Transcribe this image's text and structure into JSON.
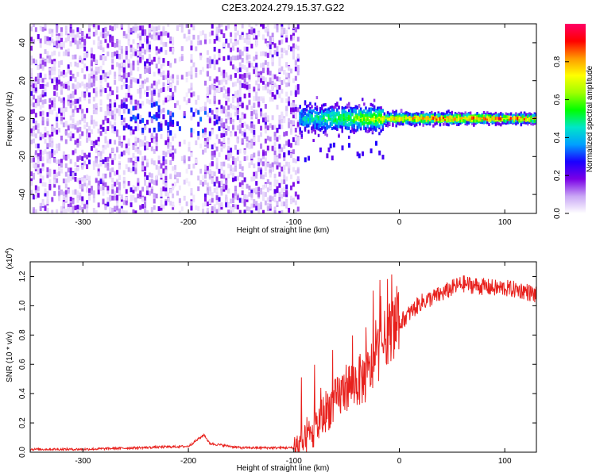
{
  "title": "C2E3.2024.279.15.37.G22",
  "chart_data": [
    {
      "type": "heatmap",
      "xlabel": "Height of straight line (km)",
      "ylabel": "Frequency (Hz)",
      "xlim": [
        -350,
        130
      ],
      "ylim": [
        -50,
        50
      ],
      "xticks": [
        -300,
        -200,
        -100,
        0,
        100
      ],
      "yticks": [
        -40,
        -20,
        0,
        20,
        40
      ],
      "colorbar": {
        "label": "Normalized spectral amplitude",
        "range": [
          0,
          1
        ],
        "ticks": [
          0.0,
          0.2,
          0.4,
          0.6,
          0.8
        ],
        "colormap": [
          "#ffffff",
          "#c9a6f5",
          "#7a00e6",
          "#1a00ff",
          "#00a0ff",
          "#00e6c8",
          "#00ff00",
          "#a0ff00",
          "#ffff00",
          "#ff9900",
          "#ff0000",
          "#ff0066"
        ]
      },
      "regions": [
        {
          "x": [
            -350,
            -95
          ],
          "freq_spread": [
            -50,
            50
          ],
          "amplitude": [
            0.0,
            0.2
          ],
          "description": "noise"
        },
        {
          "x": [
            -95,
            130
          ],
          "freq_center": 0,
          "freq_spread": [
            -8,
            8
          ],
          "amplitude": [
            0.2,
            0.9
          ]
        }
      ]
    },
    {
      "type": "line",
      "xlabel": "Height of straight line (km)",
      "ylabel": "SNR (10 * v/v)",
      "yscale_label": "(x10^4)",
      "xlim": [
        -350,
        130
      ],
      "ylim": [
        0,
        1.3
      ],
      "xticks": [
        -300,
        -200,
        -100,
        0,
        100
      ],
      "yticks": [
        0.0,
        0.2,
        0.4,
        0.6,
        0.8,
        1.0,
        1.2
      ],
      "color": "#e8211d",
      "series": [
        {
          "x": [
            -350,
            -300,
            -250,
            -200,
            -185,
            -180,
            -150,
            -100,
            -90,
            -80,
            -70,
            -60,
            -50,
            -40,
            -30,
            -20,
            -10,
            0,
            10,
            20,
            30,
            40,
            50,
            60,
            70,
            80,
            90,
            100,
            110,
            120,
            130
          ],
          "values": [
            0.02,
            0.02,
            0.03,
            0.04,
            0.12,
            0.06,
            0.03,
            0.03,
            0.05,
            0.15,
            0.28,
            0.35,
            0.45,
            0.48,
            0.52,
            0.68,
            0.82,
            0.88,
            0.95,
            1.02,
            1.05,
            1.08,
            1.12,
            1.15,
            1.14,
            1.13,
            1.12,
            1.12,
            1.11,
            1.1,
            1.07
          ]
        }
      ]
    }
  ]
}
